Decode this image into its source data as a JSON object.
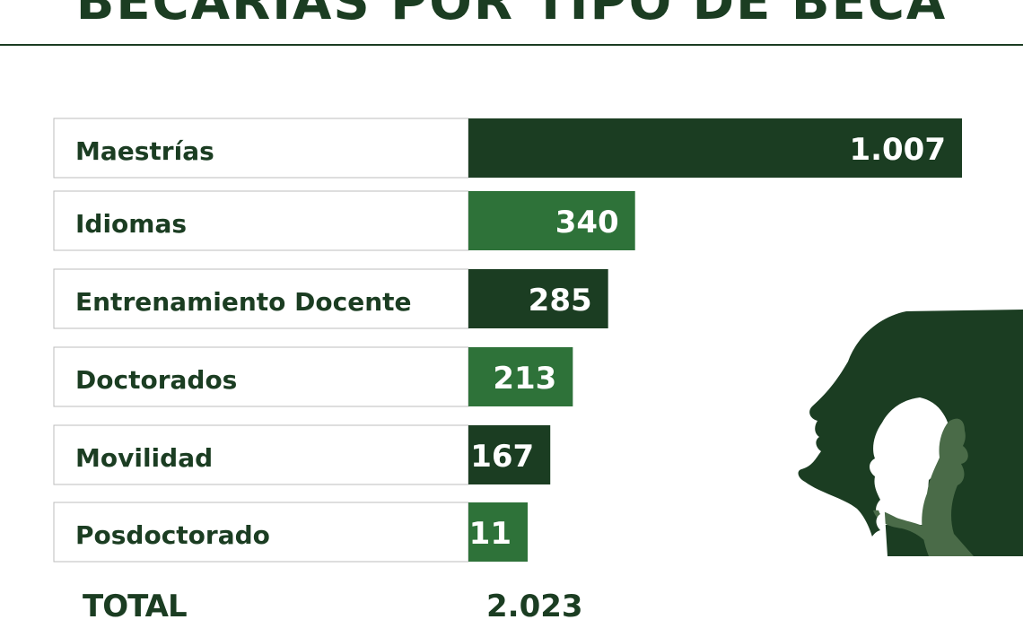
{
  "chart_data": {
    "type": "bar",
    "orientation": "horizontal",
    "title": "BECARIAS POR TIPO DE BECA",
    "categories": [
      "Maestrías",
      "Idiomas",
      "Entrenamiento Docente",
      "Doctorados",
      "Movilidad",
      "Posdoctorado"
    ],
    "values": [
      1007,
      340,
      285,
      213,
      167,
      11
    ],
    "value_labels": [
      "1.007",
      "340",
      "285",
      "213",
      "167",
      "11"
    ],
    "total_label": "TOTAL",
    "total_value": "2.023",
    "grid": false,
    "legend": "none"
  },
  "colors": {
    "dark_green": "#1b3d22",
    "mid_green": "#2e7239",
    "light_green": "#4a6b48",
    "text": "#1b3d22",
    "label_border": "#bcbcbc"
  }
}
